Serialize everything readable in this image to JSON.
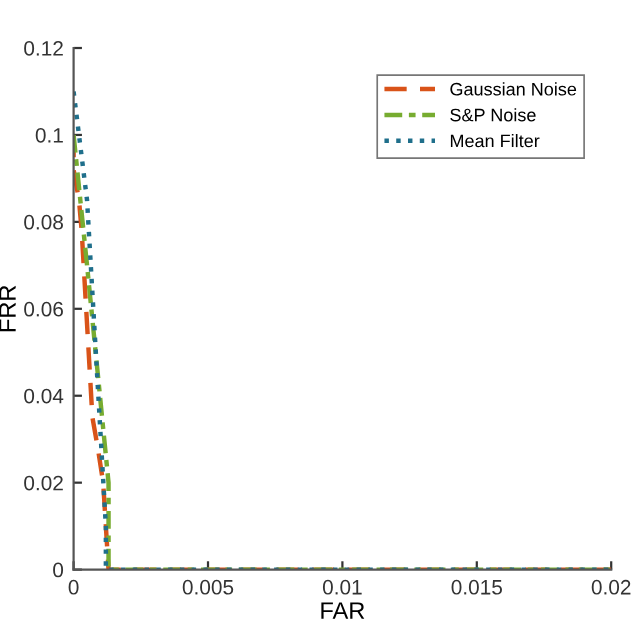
{
  "chart_data": {
    "type": "line",
    "xlabel": "FAR",
    "ylabel": "FRR",
    "xlim": [
      0,
      0.02
    ],
    "ylim": [
      0,
      0.12
    ],
    "xticks": [
      0,
      0.005,
      0.01,
      0.015,
      0.02
    ],
    "yticks": [
      0,
      0.02,
      0.04,
      0.06,
      0.08,
      0.1,
      0.12
    ],
    "grid": false,
    "legend": "top right",
    "marker": "none",
    "series": [
      {
        "name": "Gaussian Noise",
        "color": "#d95319",
        "line_style": "dashed",
        "x": [
          0,
          0,
          0.0002,
          0.0003,
          0.0007,
          0.0009,
          0.0011,
          0.0013,
          0.02
        ],
        "values": [
          0.1,
          0.092,
          0.085,
          0.078,
          0.035,
          0.028,
          0.02,
          0,
          0
        ]
      },
      {
        "name": "S&P Noise",
        "color": "#77ac30",
        "line_style": "dashdot",
        "x": [
          0,
          0.0005,
          0.0013,
          0.0013,
          0.02
        ],
        "values": [
          0.1,
          0.07,
          0.02,
          0,
          0
        ]
      },
      {
        "name": "Mean Filter",
        "color": "#1f6f8b",
        "line_style": "dotted",
        "x": [
          0,
          0.0005,
          0.0012,
          0.0012,
          0.02
        ],
        "values": [
          0.11,
          0.085,
          0.01,
          0,
          0
        ]
      }
    ]
  }
}
